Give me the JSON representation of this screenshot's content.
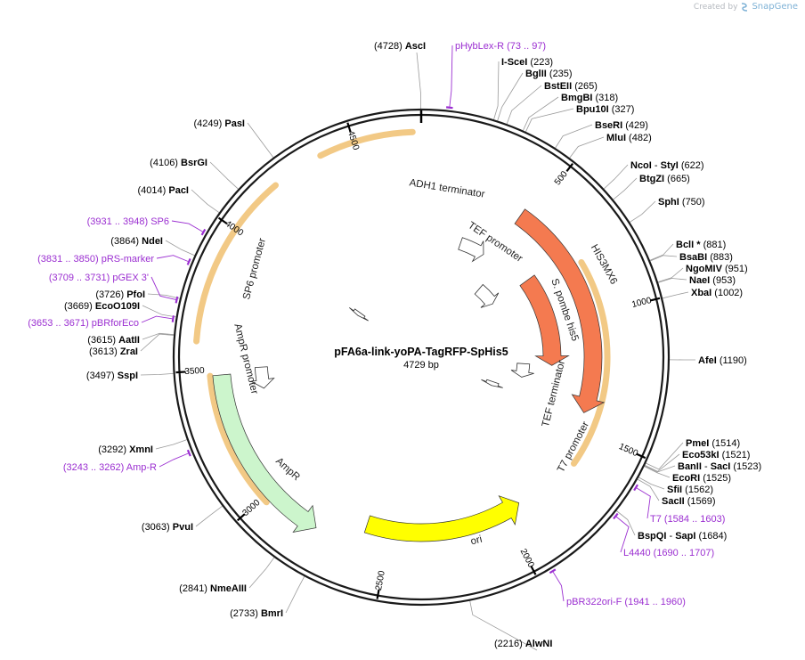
{
  "watermark": {
    "created_by": "Created by",
    "product": "SnapGene"
  },
  "plasmid": {
    "name": "pFA6a-link-yoPA-TagRFP-SpHis5",
    "size_label": "4729 bp",
    "length": 4729
  },
  "ticks": [
    "500",
    "1000",
    "1500",
    "2000",
    "2500",
    "3000",
    "3500",
    "4000",
    "4500"
  ],
  "features": [
    {
      "name": "ADH1 terminator",
      "label": "ADH1 terminator",
      "start": "",
      "end": "",
      "type": "terminator"
    },
    {
      "name": "HIS3MX6",
      "label": "HIS3MX6",
      "type": "marker",
      "color": "#f47a50"
    },
    {
      "name": "TEF promoter",
      "label": "TEF promoter",
      "type": "promoter"
    },
    {
      "name": "S. pombe his5",
      "label": "S. pombe his5",
      "type": "cds",
      "color": "#f47a50"
    },
    {
      "name": "TEF terminator",
      "label": "TEF terminator",
      "type": "terminator"
    },
    {
      "name": "T7 promoter",
      "label": "T7 promoter",
      "type": "promoter"
    },
    {
      "name": "ori",
      "label": "ori",
      "type": "origin",
      "color": "#ffff00"
    },
    {
      "name": "AmpR",
      "label": "AmpR",
      "type": "cds",
      "color": "#ccf5cc"
    },
    {
      "name": "AmpR promoter",
      "label": "AmpR promoter",
      "type": "promoter"
    },
    {
      "name": "SP6 promoter",
      "label": "SP6 promoter",
      "type": "promoter"
    }
  ],
  "enzymes": [
    {
      "name": "AscI",
      "pos": "(4728)"
    },
    {
      "name": "I-SceI",
      "pos": "(223)"
    },
    {
      "name": "BglII",
      "pos": "(235)"
    },
    {
      "name": "BstEII",
      "pos": "(265)"
    },
    {
      "name": "BmgBI",
      "pos": "(318)"
    },
    {
      "name": "Bpu10I",
      "pos": "(327)"
    },
    {
      "name": "BseRI",
      "pos": "(429)"
    },
    {
      "name": "MluI",
      "pos": "(482)"
    },
    {
      "name": "NcoI",
      "name2": "StyI",
      "pos": "(622)"
    },
    {
      "name": "BtgZI",
      "pos": "(665)"
    },
    {
      "name": "SphI",
      "pos": "(750)"
    },
    {
      "name": "BclI *",
      "pos": "(881)"
    },
    {
      "name": "BsaBI",
      "pos": "(883)"
    },
    {
      "name": "NgoMIV",
      "pos": "(951)"
    },
    {
      "name": "NaeI",
      "pos": "(953)"
    },
    {
      "name": "XbaI",
      "pos": "(1002)"
    },
    {
      "name": "AfeI",
      "pos": "(1190)"
    },
    {
      "name": "PmeI",
      "pos": "(1514)"
    },
    {
      "name": "Eco53kI",
      "pos": "(1521)"
    },
    {
      "name": "BanII",
      "name2": "SacI",
      "pos": "(1523)"
    },
    {
      "name": "EcoRI",
      "pos": "(1525)"
    },
    {
      "name": "SfiI",
      "pos": "(1562)"
    },
    {
      "name": "SacII",
      "pos": "(1569)"
    },
    {
      "name": "BspQI",
      "name2": "SapI",
      "pos": "(1684)"
    },
    {
      "name": "AlwNI",
      "pos": "(2216)"
    },
    {
      "name": "BmrI",
      "pos": "(2733)"
    },
    {
      "name": "NmeAIII",
      "pos": "(2841)"
    },
    {
      "name": "PvuI",
      "pos": "(3063)"
    },
    {
      "name": "XmnI",
      "pos": "(3292)"
    },
    {
      "name": "SspI",
      "pos": "(3497)"
    },
    {
      "name": "ZraI",
      "pos": "(3613)"
    },
    {
      "name": "AatII",
      "pos": "(3615)"
    },
    {
      "name": "EcoO109I",
      "pos": "(3669)"
    },
    {
      "name": "PfoI",
      "pos": "(3726)"
    },
    {
      "name": "NdeI",
      "pos": "(3864)"
    },
    {
      "name": "PacI",
      "pos": "(4014)"
    },
    {
      "name": "BsrGI",
      "pos": "(4106)"
    },
    {
      "name": "PasI",
      "pos": "(4249)"
    }
  ],
  "primers": [
    {
      "name": "pHybLex-R",
      "range": "(73 .. 97)"
    },
    {
      "name": "T7",
      "range": "(1584 .. 1603)"
    },
    {
      "name": "L4440",
      "range": "(1690 .. 1707)"
    },
    {
      "name": "pBR322ori-F",
      "range": "(1941 .. 1960)"
    },
    {
      "name": "Amp-R",
      "range": "(3243 .. 3262)"
    },
    {
      "name": "pBRforEco",
      "range": "(3653 .. 3671)"
    },
    {
      "name": "pGEX 3'",
      "range": "(3709 .. 3731)"
    },
    {
      "name": "pRS-marker",
      "range": "(3831 .. 3850)"
    },
    {
      "name": "SP6",
      "range": "(3931 .. 3948)"
    }
  ],
  "colors": {
    "backbone": "#1a1a1a",
    "primer": "#9b2fd1",
    "orange_feature": "#f47a50",
    "ori": "#ffff00",
    "ampr": "#ccf5cc",
    "highlight": "#f0c070"
  }
}
